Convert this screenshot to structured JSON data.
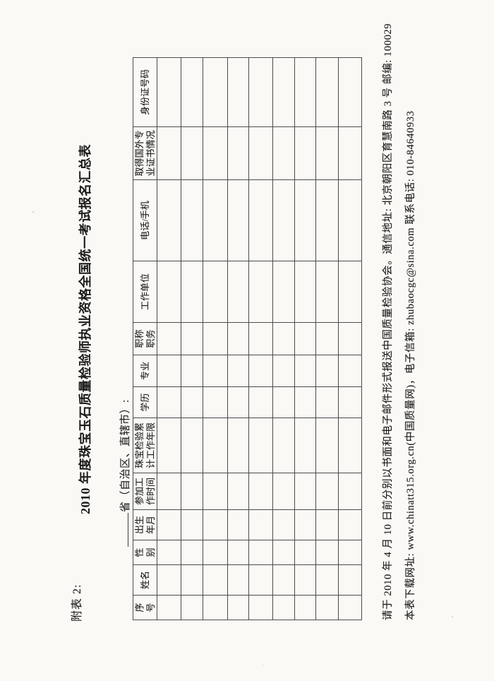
{
  "page": {
    "appendix_label": "附表 2:",
    "title": "2010 年度珠宝玉石质量检验师执业资格全国统一考试报名汇总表",
    "province_label": "省（自治区、直辖市）:",
    "footer_line1": "请于 2010 年 4 月 10 日前分别以书面和电子邮件形式报送中国质量检验协会。通信地址: 北京朝阳区育慧南路 3 号  邮编: 100029",
    "footer_line2": "本表下载网址: www.chinatt315.org.cn(中国质量网)，电子信箱: zhubaocgc@sina.com  联系电话: 010-84640933"
  },
  "table": {
    "headers": [
      "序\n号",
      "姓名",
      "性\n别",
      "出生\n年月",
      "参加工\n作时间",
      "珠宝检验累\n计工作年限",
      "学历",
      "专业",
      "职称\n职务",
      "工作单位",
      "电话/手机",
      "取得国外专\n业证书情况",
      "身份证号码"
    ],
    "empty_rows": 9,
    "cell_values": []
  }
}
